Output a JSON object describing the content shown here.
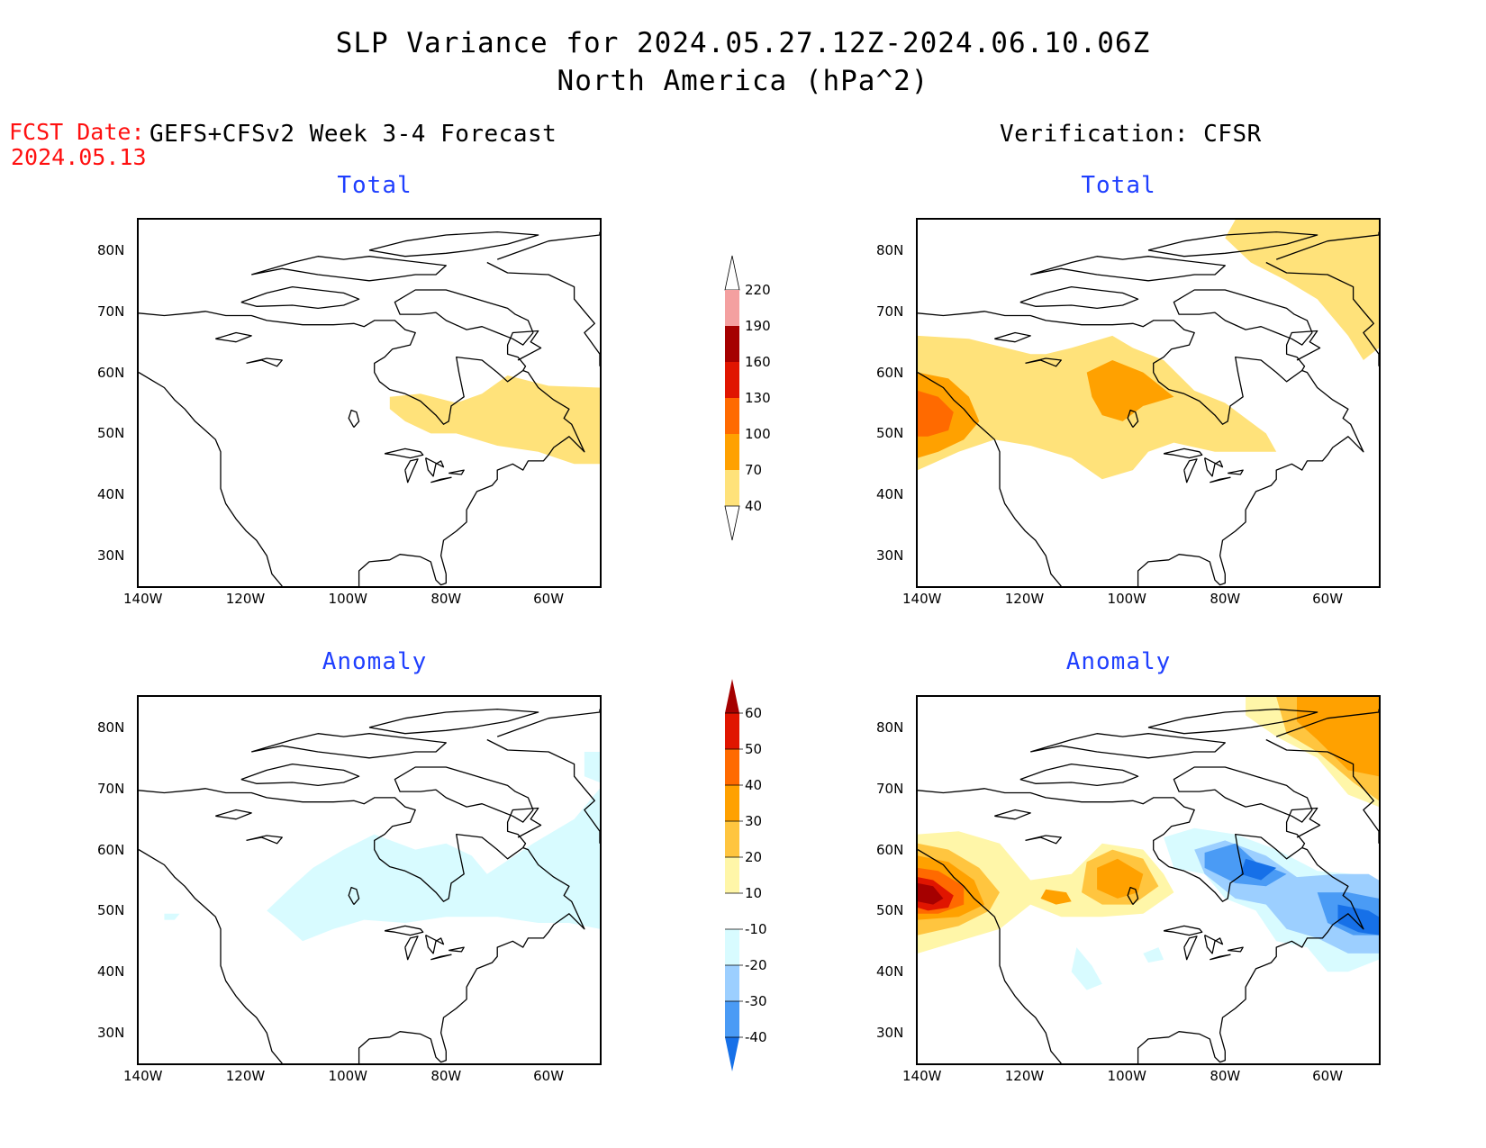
{
  "header": {
    "title_line1": "SLP Variance for 2024.05.27.12Z-2024.06.10.06Z",
    "title_line2": "North America (hPa^2)",
    "fcst_date_label": "FCST Date:",
    "fcst_date_value": "2024.05.13",
    "left_column_title": "GEFS+CFSv2 Week 3-4 Forecast",
    "right_column_title": "Verification: CFSR"
  },
  "panels": {
    "total_title": "Total",
    "anomaly_title": "Anomaly"
  },
  "axes": {
    "lat_labels": [
      "80N",
      "70N",
      "60N",
      "50N",
      "40N",
      "30N"
    ],
    "lon_labels": [
      "140W",
      "120W",
      "100W",
      "80W",
      "60W"
    ],
    "lat_range": [
      25,
      85
    ],
    "lon_range": [
      -140,
      -50
    ]
  },
  "colorbar_total": {
    "levels": [
      "220",
      "190",
      "160",
      "130",
      "100",
      "70",
      "40"
    ],
    "colors": [
      "#ffffff",
      "#f4a0a0",
      "#a50000",
      "#e01500",
      "#ff6a00",
      "#ffa100",
      "#ffe27a"
    ]
  },
  "colorbar_anomaly": {
    "levels": [
      "60",
      "50",
      "40",
      "30",
      "20",
      "10",
      "-10",
      "-20",
      "-30",
      "-40"
    ],
    "colors": [
      "#a50000",
      "#e01500",
      "#ff6a00",
      "#ffa100",
      "#ffc53f",
      "#fff6a8",
      "#ffffff",
      "#d8fbff",
      "#9ccfff",
      "#4a9bf5",
      "#1670e8"
    ]
  }
}
